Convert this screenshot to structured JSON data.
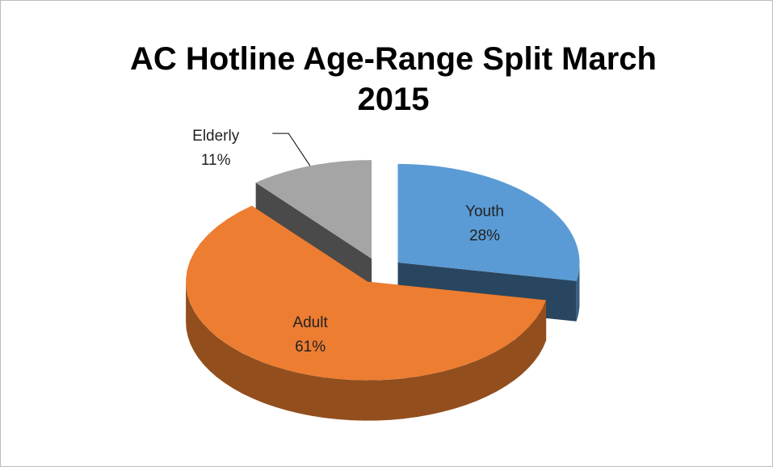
{
  "chart_data": {
    "type": "pie",
    "title": "AC Hotline Age-Range Split March 2015",
    "categories": [
      "Youth",
      "Adult",
      "Elderly"
    ],
    "values": [
      28,
      61,
      11
    ],
    "value_labels": [
      "28%",
      "61%",
      "11%"
    ],
    "colors": [
      "#5b9bd5",
      "#ed7d31",
      "#a5a5a5"
    ]
  }
}
